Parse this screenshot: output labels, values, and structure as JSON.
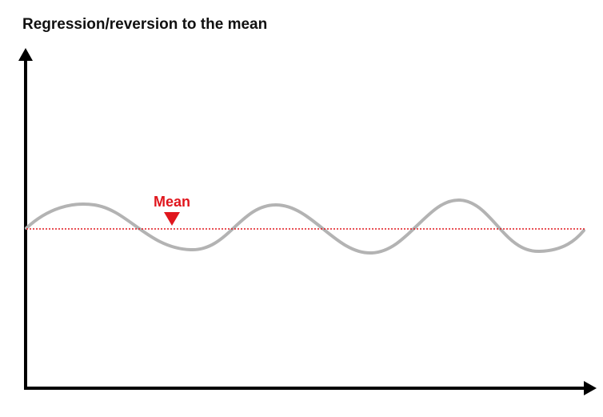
{
  "title": "Regression/reversion to the mean",
  "mean_label": "Mean",
  "colors": {
    "axis": "#000000",
    "wave": "#b3b3b3",
    "mean": "#e0161d",
    "title": "#111111"
  }
}
